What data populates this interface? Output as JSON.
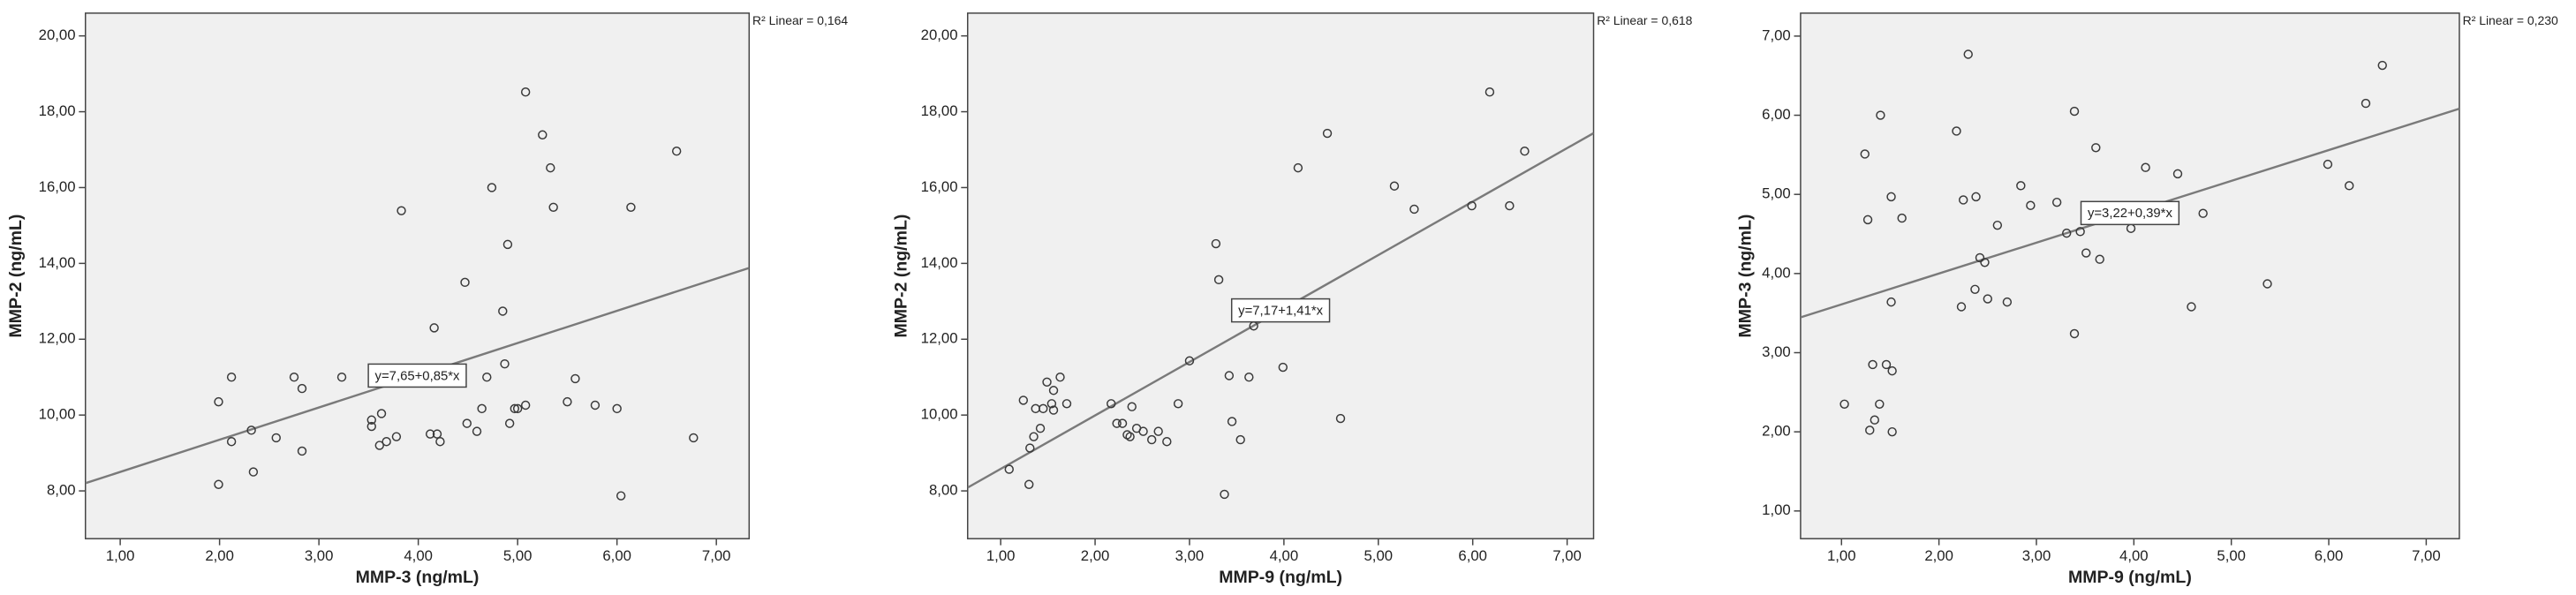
{
  "chart_data": [
    {
      "type": "scatter",
      "x_label": "MMP-3 (ng/mL)",
      "y_label": "MMP-2 (ng/mL)",
      "x": [
        1.99,
        1.99,
        2.12,
        2.12,
        2.32,
        2.34,
        2.57,
        2.75,
        2.83,
        2.83,
        3.23,
        3.53,
        3.53,
        3.63,
        3.61,
        3.68,
        3.78,
        3.83,
        4.16,
        4.12,
        4.19,
        4.22,
        4.47,
        4.49,
        4.59,
        4.64,
        4.69,
        4.74,
        4.85,
        4.87,
        4.9,
        4.92,
        4.97,
        5.0,
        5.08,
        5.08,
        5.25,
        5.33,
        5.36,
        5.5,
        5.58,
        5.78,
        6.0,
        6.04,
        6.14,
        6.6,
        6.77
      ],
      "values": [
        10.35,
        8.17,
        11.0,
        9.3,
        9.6,
        8.5,
        9.4,
        11.0,
        10.7,
        9.05,
        11.0,
        9.87,
        9.7,
        10.04,
        9.2,
        9.3,
        9.43,
        15.39,
        12.3,
        9.5,
        9.5,
        9.3,
        13.5,
        9.78,
        9.57,
        10.17,
        11.0,
        16.0,
        12.74,
        11.35,
        14.5,
        9.78,
        10.17,
        10.17,
        10.26,
        18.52,
        17.39,
        16.52,
        15.48,
        10.35,
        10.96,
        10.26,
        10.17,
        7.87,
        15.48,
        16.96,
        9.4
      ],
      "marker_color": "#3a3a3a",
      "plot_bg": "#f0f0f0",
      "fit": {
        "intercept": 7.65,
        "slope": 0.85,
        "label": "y=7,65+0,85*x",
        "color": "#7a7a7a"
      },
      "r2_label": "R² Linear = 0,164",
      "xlim": [
        0.65,
        7.33
      ],
      "xticks": [
        {
          "value": 1,
          "label": "1,00"
        },
        {
          "value": 2,
          "label": "2,00"
        },
        {
          "value": 3,
          "label": "3,00"
        },
        {
          "value": 4,
          "label": "4,00"
        },
        {
          "value": 5,
          "label": "5,00"
        },
        {
          "value": 6,
          "label": "6,00"
        },
        {
          "value": 7,
          "label": "7,00"
        }
      ],
      "ylim": [
        6.74,
        20.6
      ],
      "yticks": [
        {
          "value": 8,
          "label": "8,00"
        },
        {
          "value": 10,
          "label": "10,00"
        },
        {
          "value": 12,
          "label": "12,00"
        },
        {
          "value": 14,
          "label": "14,00"
        },
        {
          "value": 16,
          "label": "16,00"
        },
        {
          "value": 18,
          "label": "18,00"
        },
        {
          "value": 20,
          "label": "20,00"
        }
      ]
    },
    {
      "type": "scatter",
      "x_label": "MMP-9 (ng/mL)",
      "y_label": "MMP-2 (ng/mL)",
      "x": [
        1.09,
        1.24,
        1.3,
        1.31,
        1.35,
        1.37,
        1.42,
        1.45,
        1.49,
        1.54,
        1.56,
        1.56,
        1.63,
        1.7,
        2.17,
        2.23,
        2.29,
        2.34,
        2.37,
        2.39,
        2.44,
        2.51,
        2.6,
        2.67,
        2.76,
        2.88,
        3.0,
        3.28,
        3.31,
        3.37,
        3.42,
        3.45,
        3.54,
        3.63,
        3.68,
        3.99,
        4.15,
        4.46,
        4.6,
        5.17,
        5.38,
        5.99,
        6.18,
        6.39,
        6.55
      ],
      "values": [
        8.57,
        10.39,
        8.17,
        9.13,
        9.43,
        10.17,
        9.65,
        10.17,
        10.87,
        10.3,
        10.13,
        10.65,
        11.0,
        10.3,
        10.3,
        9.78,
        9.78,
        9.48,
        9.43,
        10.22,
        9.65,
        9.57,
        9.35,
        9.57,
        9.3,
        10.3,
        11.43,
        14.52,
        13.57,
        7.91,
        11.04,
        9.83,
        9.35,
        11.0,
        12.35,
        11.26,
        16.52,
        17.43,
        9.91,
        16.04,
        15.43,
        15.52,
        18.52,
        15.52,
        16.96
      ],
      "marker_color": "#3a3a3a",
      "plot_bg": "#f0f0f0",
      "fit": {
        "intercept": 7.17,
        "slope": 1.41,
        "label": "y=7,17+1,41*x",
        "color": "#7a7a7a"
      },
      "r2_label": "R² Linear = 0,618",
      "xlim": [
        0.65,
        7.28
      ],
      "xticks": [
        {
          "value": 1,
          "label": "1,00"
        },
        {
          "value": 2,
          "label": "2,00"
        },
        {
          "value": 3,
          "label": "3,00"
        },
        {
          "value": 4,
          "label": "4,00"
        },
        {
          "value": 5,
          "label": "5,00"
        },
        {
          "value": 6,
          "label": "6,00"
        },
        {
          "value": 7,
          "label": "7,00"
        }
      ],
      "ylim": [
        6.74,
        20.6
      ],
      "yticks": [
        {
          "value": 8,
          "label": "8,00"
        },
        {
          "value": 10,
          "label": "10,00"
        },
        {
          "value": 12,
          "label": "12,00"
        },
        {
          "value": 14,
          "label": "14,00"
        },
        {
          "value": 16,
          "label": "16,00"
        },
        {
          "value": 18,
          "label": "18,00"
        },
        {
          "value": 20,
          "label": "20,00"
        }
      ]
    },
    {
      "type": "scatter",
      "x_label": "MMP-9 (ng/mL)",
      "y_label": "MMP-3 (ng/mL)",
      "x": [
        1.03,
        1.24,
        1.27,
        1.29,
        1.32,
        1.34,
        1.39,
        1.4,
        1.46,
        1.52,
        1.51,
        1.51,
        1.52,
        1.62,
        2.18,
        2.23,
        2.25,
        2.3,
        2.37,
        2.38,
        2.42,
        2.47,
        2.5,
        2.6,
        2.7,
        2.84,
        2.94,
        3.21,
        3.31,
        3.39,
        3.39,
        3.45,
        3.51,
        3.61,
        3.65,
        3.97,
        4.12,
        4.45,
        4.59,
        4.71,
        5.37,
        5.99,
        6.21,
        6.38,
        6.55
      ],
      "values": [
        2.35,
        5.51,
        4.68,
        2.02,
        2.85,
        2.15,
        2.35,
        6.0,
        2.85,
        2.77,
        3.64,
        4.97,
        2.0,
        4.7,
        5.8,
        3.58,
        4.93,
        6.77,
        3.8,
        4.97,
        4.2,
        4.14,
        3.68,
        4.61,
        3.64,
        5.11,
        4.86,
        4.9,
        4.51,
        6.05,
        3.24,
        4.53,
        4.26,
        5.59,
        4.18,
        4.57,
        5.34,
        5.26,
        3.58,
        4.76,
        3.87,
        5.38,
        5.11,
        6.15,
        6.63
      ],
      "marker_color": "#3a3a3a",
      "plot_bg": "#f0f0f0",
      "fit": {
        "intercept": 3.22,
        "slope": 0.39,
        "label": "y=3,22+0,39*x",
        "color": "#7a7a7a"
      },
      "r2_label": "R² Linear = 0,230",
      "xlim": [
        0.58,
        7.34
      ],
      "xticks": [
        {
          "value": 1,
          "label": "1,00"
        },
        {
          "value": 2,
          "label": "2,00"
        },
        {
          "value": 3,
          "label": "3,00"
        },
        {
          "value": 4,
          "label": "4,00"
        },
        {
          "value": 5,
          "label": "5,00"
        },
        {
          "value": 6,
          "label": "6,00"
        },
        {
          "value": 7,
          "label": "7,00"
        }
      ],
      "ylim": [
        0.65,
        7.29
      ],
      "yticks": [
        {
          "value": 1,
          "label": "1,00"
        },
        {
          "value": 2,
          "label": "2,00"
        },
        {
          "value": 3,
          "label": "3,00"
        },
        {
          "value": 4,
          "label": "4,00"
        },
        {
          "value": 5,
          "label": "5,00"
        },
        {
          "value": 6,
          "label": "6,00"
        },
        {
          "value": 7,
          "label": "7,00"
        }
      ]
    }
  ]
}
